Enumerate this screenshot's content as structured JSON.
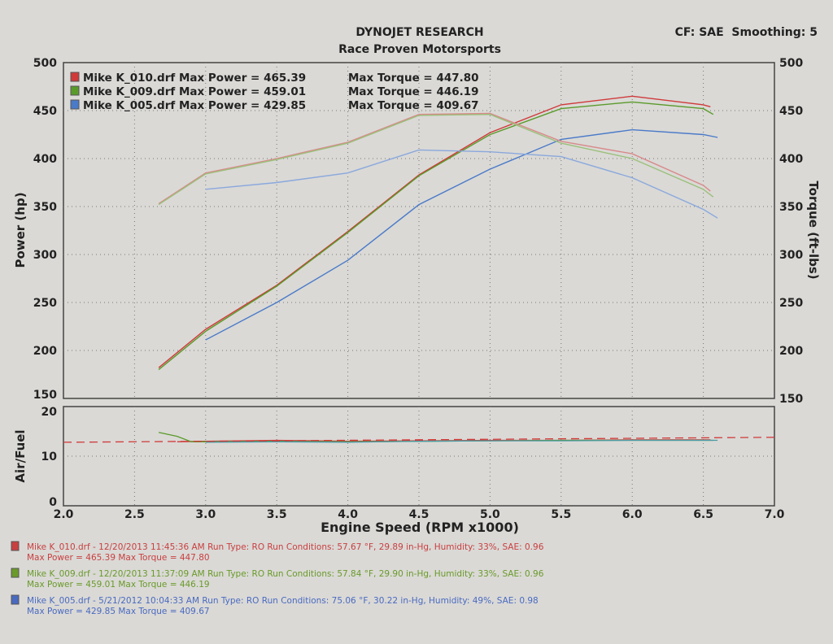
{
  "header": {
    "title": "DYNOJET RESEARCH",
    "subtitle": "Race Proven Motorsports",
    "settings": "CF: SAE  Smoothing: 5"
  },
  "chart_data": [
    {
      "type": "line",
      "xlabel": "Engine Speed (RPM x1000)",
      "ylabel": "Power (hp)",
      "ylabel_right": "Torque (ft-lbs)",
      "xlim": [
        2.0,
        7.0
      ],
      "ylim": [
        150,
        500
      ],
      "ylim_right": [
        150,
        500
      ],
      "x_ticks": [
        "2.0",
        "2.5",
        "3.0",
        "3.5",
        "4.0",
        "4.5",
        "5.0",
        "5.5",
        "6.0",
        "6.5",
        "7.0"
      ],
      "y_ticks": [
        "150",
        "200",
        "250",
        "300",
        "350",
        "400",
        "450",
        "500"
      ],
      "y_ticks_right": [
        "150",
        "200",
        "250",
        "300",
        "350",
        "400",
        "450",
        "500"
      ],
      "grid": true,
      "legend_position": "top-left",
      "legend": [
        {
          "file": "Mike K_010.drf",
          "power_label": "Max Power = 465.39",
          "torque_label": "Max Torque = 447.80",
          "color": "#d03a3a"
        },
        {
          "file": "Mike K_009.drf",
          "power_label": "Max Power = 459.01",
          "torque_label": "Max Torque = 446.19",
          "color": "#5a9a2a"
        },
        {
          "file": "Mike K_005.drf",
          "power_label": "Max Power = 429.85",
          "torque_label": "Max Torque = 409.67",
          "color": "#4a7ac8"
        }
      ],
      "series": [
        {
          "name": "Mike K_010.drf",
          "kind": "power",
          "color": "#d03a3a",
          "x": [
            2.67,
            3.0,
            3.5,
            4.0,
            4.5,
            5.0,
            5.5,
            6.0,
            6.5,
            6.55
          ],
          "y": [
            182,
            222,
            268,
            324,
            383,
            427,
            456,
            465,
            456,
            454
          ]
        },
        {
          "name": "Mike K_009.drf",
          "kind": "power",
          "color": "#5a9a2a",
          "x": [
            2.67,
            3.0,
            3.5,
            4.0,
            4.5,
            5.0,
            5.5,
            6.0,
            6.5,
            6.57
          ],
          "y": [
            180,
            220,
            267,
            323,
            382,
            425,
            452,
            459,
            452,
            446
          ]
        },
        {
          "name": "Mike K_005.drf",
          "kind": "power",
          "color": "#4a7ac8",
          "x": [
            3.0,
            3.5,
            4.0,
            4.5,
            5.0,
            5.5,
            6.0,
            6.5,
            6.6
          ],
          "y": [
            211,
            250,
            294,
            352,
            389,
            420,
            430,
            425,
            422
          ]
        },
        {
          "name": "Mike K_010.drf",
          "kind": "torque",
          "color": "#d88a8a",
          "x": [
            2.67,
            3.0,
            3.5,
            4.0,
            4.5,
            5.0,
            5.5,
            6.0,
            6.5,
            6.55
          ],
          "y": [
            353,
            385,
            400,
            417,
            446,
            447,
            418,
            405,
            372,
            366
          ]
        },
        {
          "name": "Mike K_009.drf",
          "kind": "torque",
          "color": "#9ac07a",
          "x": [
            2.67,
            3.0,
            3.5,
            4.0,
            4.5,
            5.0,
            5.5,
            6.0,
            6.5,
            6.57
          ],
          "y": [
            352,
            384,
            399,
            416,
            445,
            446,
            416,
            400,
            368,
            360
          ]
        },
        {
          "name": "Mike K_005.drf",
          "kind": "torque",
          "color": "#8aa8dc",
          "x": [
            3.0,
            3.5,
            4.0,
            4.5,
            5.0,
            5.5,
            6.0,
            6.5,
            6.6
          ],
          "y": [
            368,
            375,
            385,
            409,
            407,
            402,
            380,
            347,
            338
          ]
        }
      ]
    },
    {
      "type": "line",
      "ylabel": "Air/Fuel",
      "xlim": [
        2.0,
        7.0
      ],
      "ylim": [
        0,
        20
      ],
      "y_ticks": [
        "0",
        "10",
        "20"
      ],
      "grid": true,
      "series": [
        {
          "name": "Mike K_010.drf",
          "color": "#d03a3a",
          "x": [
            2.8,
            3.0,
            3.5,
            4.0,
            4.5,
            5.0,
            5.5,
            6.0,
            6.55
          ],
          "y": [
            12.9,
            13.0,
            13.2,
            13.0,
            13.1,
            13.2,
            13.2,
            13.3,
            13.3
          ]
        },
        {
          "name": "Mike K_009.drf",
          "color": "#5a9a2a",
          "x": [
            2.67,
            2.8,
            2.9,
            3.0,
            3.5,
            4.0,
            4.5,
            5.0,
            5.5,
            6.0,
            6.57
          ],
          "y": [
            14.8,
            14.0,
            12.9,
            12.9,
            13.0,
            12.9,
            13.0,
            13.1,
            13.2,
            13.2,
            13.2
          ]
        },
        {
          "name": "Mike K_005.drf",
          "color": "#4a9aa8",
          "x": [
            3.0,
            3.5,
            4.0,
            4.5,
            5.0,
            5.5,
            6.0,
            6.6
          ],
          "y": [
            12.8,
            12.9,
            12.8,
            13.0,
            13.1,
            13.1,
            13.2,
            13.2
          ]
        },
        {
          "name": "reference",
          "color": "#d03a3a",
          "dashed": true,
          "x": [
            2.0,
            7.0
          ],
          "y": [
            12.8,
            13.8
          ]
        }
      ]
    }
  ],
  "run_info": [
    {
      "line1": "Mike K_010.drf - 12/20/2013 11:45:36 AM  Run Type: RO  Run Conditions: 57.67 °F, 29.89 in-Hg,  Humidity:  33%, SAE: 0.96",
      "line2": "Max Power = 465.39  Max Torque = 447.80",
      "color": "#c84040"
    },
    {
      "line1": "Mike K_009.drf - 12/20/2013 11:37:09 AM  Run Type: RO  Run Conditions: 57.84 °F, 29.90 in-Hg,  Humidity:  33%, SAE: 0.96",
      "line2": "Max Power = 459.01  Max Torque = 446.19",
      "color": "#6a9a2a"
    },
    {
      "line1": "Mike K_005.drf - 5/21/2012 10:04:33 AM  Run Type: RO  Run Conditions: 75.06 °F, 30.22 in-Hg,  Humidity:  49%, SAE: 0.98",
      "line2": "Max Power = 429.85  Max Torque = 409.67",
      "color": "#4a6ac0"
    }
  ]
}
